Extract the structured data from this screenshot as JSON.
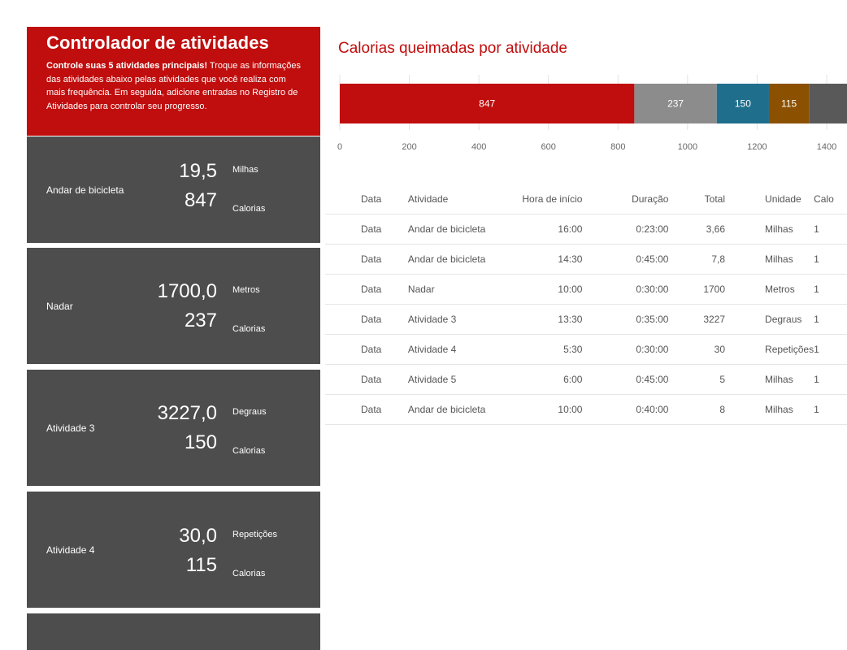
{
  "header": {
    "title": "Controlador de atividades",
    "intro_bold": "Controle suas 5 atividades principais!",
    "intro_text": " Troque as informações das atividades abaixo pelas atividades que você realiza com mais frequência. Em seguida, adicione entradas no Registro de Atividades para controlar seu progresso."
  },
  "cards": [
    {
      "name": "Andar de bicicleta",
      "amount": "19,5",
      "unit": "Milhas",
      "calories": "847",
      "calories_label": "Calorias"
    },
    {
      "name": "Nadar",
      "amount": "1700,0",
      "unit": "Metros",
      "calories": "237",
      "calories_label": "Calorias"
    },
    {
      "name": "Atividade 3",
      "amount": "3227,0",
      "unit": "Degraus",
      "calories": "150",
      "calories_label": "Calorias"
    },
    {
      "name": "Atividade 4",
      "amount": "30,0",
      "unit": "Repetições",
      "calories": "115",
      "calories_label": "Calorias"
    }
  ],
  "chart": {
    "title": "Calorias queimadas por atividade"
  },
  "chart_data": {
    "type": "bar",
    "orientation": "horizontal-stacked",
    "series": [
      {
        "value": 847,
        "color": "#c00d0d"
      },
      {
        "value": 237,
        "color": "#8c8c8c"
      },
      {
        "value": 150,
        "color": "#1f6e8c"
      },
      {
        "value": 115,
        "color": "#8b5000"
      },
      {
        "value": 120,
        "color": "#595959"
      }
    ],
    "xlim": [
      0,
      1400
    ],
    "x_ticks": [
      0,
      200,
      400,
      600,
      800,
      1000,
      1200,
      1400
    ],
    "grid": true
  },
  "table": {
    "headers": [
      "Data",
      "Atividade",
      "Hora de início",
      "Duração",
      "Total",
      "Unidade",
      "Calo"
    ],
    "rows": [
      [
        "Data",
        "Andar de bicicleta",
        "16:00",
        "0:23:00",
        "3,66",
        "Milhas",
        "1"
      ],
      [
        "Data",
        "Andar de bicicleta",
        "14:30",
        "0:45:00",
        "7,8",
        "Milhas",
        "1"
      ],
      [
        "Data",
        "Nadar",
        "10:00",
        "0:30:00",
        "1700",
        "Metros",
        "1"
      ],
      [
        "Data",
        "Atividade 3",
        "13:30",
        "0:35:00",
        "3227",
        "Degraus",
        "1"
      ],
      [
        "Data",
        "Atividade 4",
        "5:30",
        "0:30:00",
        "30",
        "Repetições",
        "1"
      ],
      [
        "Data",
        "Atividade 5",
        "6:00",
        "0:45:00",
        "5",
        "Milhas",
        "1"
      ],
      [
        "Data",
        "Andar de bicicleta",
        "10:00",
        "0:40:00",
        "8",
        "Milhas",
        "1"
      ]
    ]
  }
}
